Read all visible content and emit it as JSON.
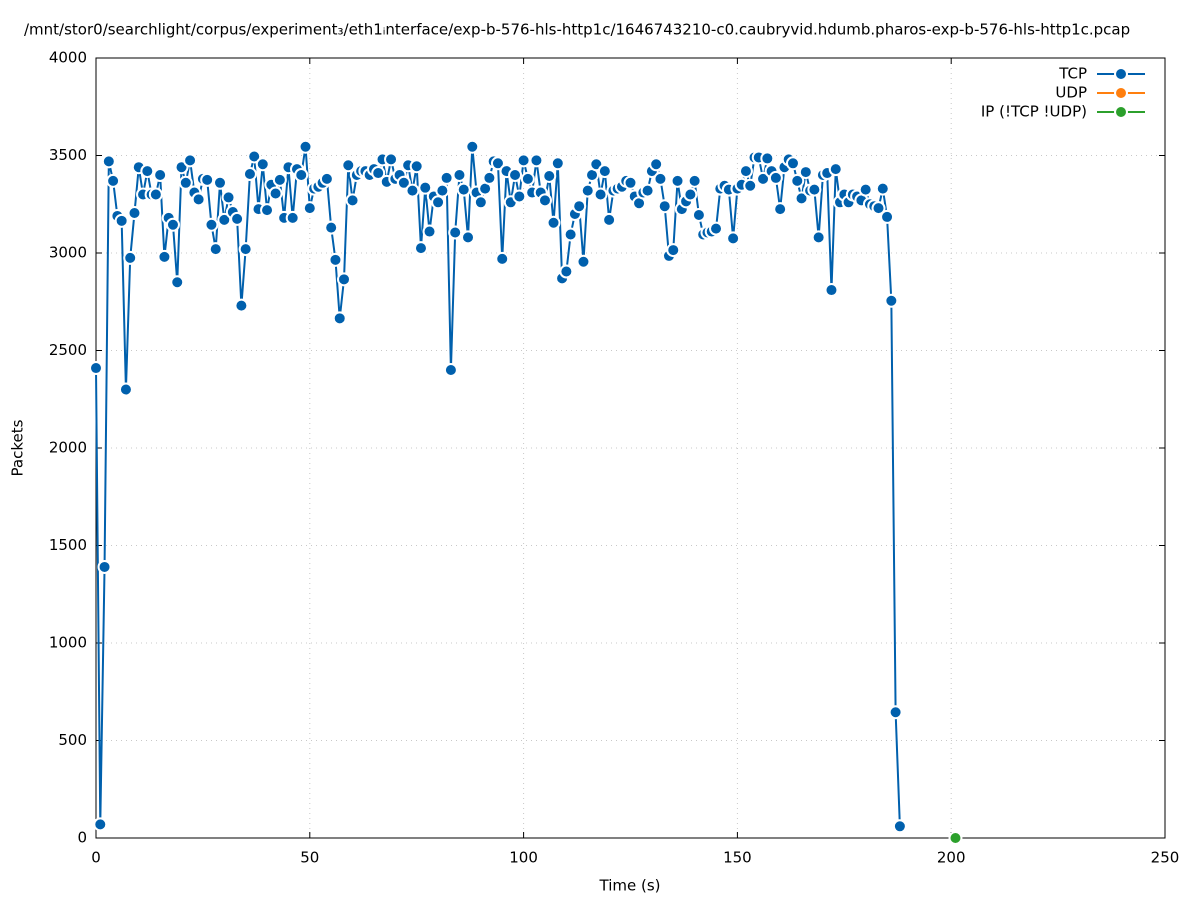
{
  "chart_data": {
    "type": "line",
    "title": "/mnt/stor0/searchlight/corpus/experiment₃/eth1ᵢnterface/exp-b-576-hls-http1c/1646743210-c0.caubryvid.hdumb.pharos-exp-b-576-hls-http1c.pcap",
    "x_label": "Time (s)",
    "y_label": "Packets",
    "xlim": [
      0,
      250
    ],
    "xticks": [
      0,
      50,
      100,
      150,
      200,
      250
    ],
    "ylim": [
      0,
      4000
    ],
    "yticks": [
      0,
      500,
      1000,
      1500,
      2000,
      2500,
      3000,
      3500,
      4000
    ],
    "grid": true,
    "legend": "top-right",
    "series": [
      {
        "name": "TCP",
        "color": "#0060ad",
        "x": [
          0,
          1,
          2,
          3,
          4,
          5,
          6,
          7,
          8,
          9,
          10,
          11,
          12,
          13,
          14,
          15,
          16,
          17,
          18,
          19,
          20,
          21,
          22,
          23,
          24,
          25,
          26,
          27,
          28,
          29,
          30,
          31,
          32,
          33,
          34,
          35,
          36,
          37,
          38,
          39,
          40,
          41,
          42,
          43,
          44,
          45,
          46,
          47,
          48,
          49,
          50,
          51,
          52,
          53,
          54,
          55,
          56,
          57,
          58,
          59,
          60,
          61,
          62,
          63,
          64,
          65,
          66,
          67,
          68,
          69,
          70,
          71,
          72,
          73,
          74,
          75,
          76,
          77,
          78,
          79,
          80,
          81,
          82,
          83,
          84,
          85,
          86,
          87,
          88,
          89,
          90,
          91,
          92,
          93,
          94,
          95,
          96,
          97,
          98,
          99,
          100,
          101,
          102,
          103,
          104,
          105,
          106,
          107,
          108,
          109,
          110,
          111,
          112,
          113,
          114,
          115,
          116,
          117,
          118,
          119,
          120,
          121,
          122,
          123,
          124,
          125,
          126,
          127,
          128,
          129,
          130,
          131,
          132,
          133,
          134,
          135,
          136,
          137,
          138,
          139,
          140,
          141,
          142,
          143,
          144,
          145,
          146,
          147,
          148,
          149,
          150,
          151,
          152,
          153,
          154,
          155,
          156,
          157,
          158,
          159,
          160,
          161,
          162,
          163,
          164,
          165,
          166,
          167,
          168,
          169,
          170,
          171,
          172,
          173,
          174,
          175,
          176,
          177,
          178,
          179,
          180,
          181,
          182,
          183,
          184,
          185,
          186,
          187,
          188
        ],
        "values": [
          2410,
          70,
          1390,
          3470,
          3370,
          3190,
          3165,
          2300,
          2975,
          3205,
          3440,
          3300,
          3420,
          3300,
          3300,
          3400,
          2980,
          3180,
          3145,
          2850,
          3440,
          3360,
          3475,
          3310,
          3275,
          3380,
          3375,
          3145,
          3020,
          3360,
          3170,
          3285,
          3210,
          3175,
          2730,
          3020,
          3405,
          3495,
          3225,
          3455,
          3220,
          3350,
          3305,
          3375,
          3180,
          3440,
          3180,
          3430,
          3400,
          3545,
          3230,
          3330,
          3340,
          3360,
          3380,
          3130,
          2965,
          2665,
          2865,
          3450,
          3270,
          3400,
          3420,
          3420,
          3400,
          3430,
          3410,
          3480,
          3365,
          3480,
          3380,
          3400,
          3360,
          3450,
          3320,
          3445,
          3025,
          3335,
          3110,
          3290,
          3260,
          3320,
          3385,
          2400,
          3105,
          3400,
          3325,
          3080,
          3545,
          3310,
          3260,
          3330,
          3385,
          3470,
          3460,
          2970,
          3420,
          3260,
          3400,
          3290,
          3475,
          3380,
          3310,
          3475,
          3310,
          3270,
          3395,
          3155,
          3460,
          2870,
          2905,
          3095,
          3200,
          3240,
          2955,
          3320,
          3400,
          3455,
          3300,
          3420,
          3170,
          3320,
          3330,
          3340,
          3370,
          3360,
          3290,
          3255,
          3310,
          3320,
          3420,
          3455,
          3380,
          3240,
          2985,
          3015,
          3370,
          3225,
          3265,
          3300,
          3370,
          3195,
          3095,
          3105,
          3110,
          3125,
          3330,
          3345,
          3325,
          3075,
          3330,
          3350,
          3420,
          3345,
          3490,
          3490,
          3380,
          3485,
          3420,
          3385,
          3225,
          3440,
          3480,
          3460,
          3370,
          3280,
          3415,
          3320,
          3325,
          3080,
          3400,
          3410,
          2810,
          3430,
          3260,
          3300,
          3260,
          3300,
          3290,
          3270,
          3325,
          3250,
          3240,
          3230,
          3330,
          3185,
          2755,
          645,
          60
        ]
      },
      {
        "name": "UDP",
        "color": "#ff7f0e",
        "x": [],
        "values": []
      },
      {
        "name": "IP (!TCP  !UDP)",
        "color": "#2ca02c",
        "x": [
          201
        ],
        "values": [
          0
        ]
      }
    ]
  }
}
